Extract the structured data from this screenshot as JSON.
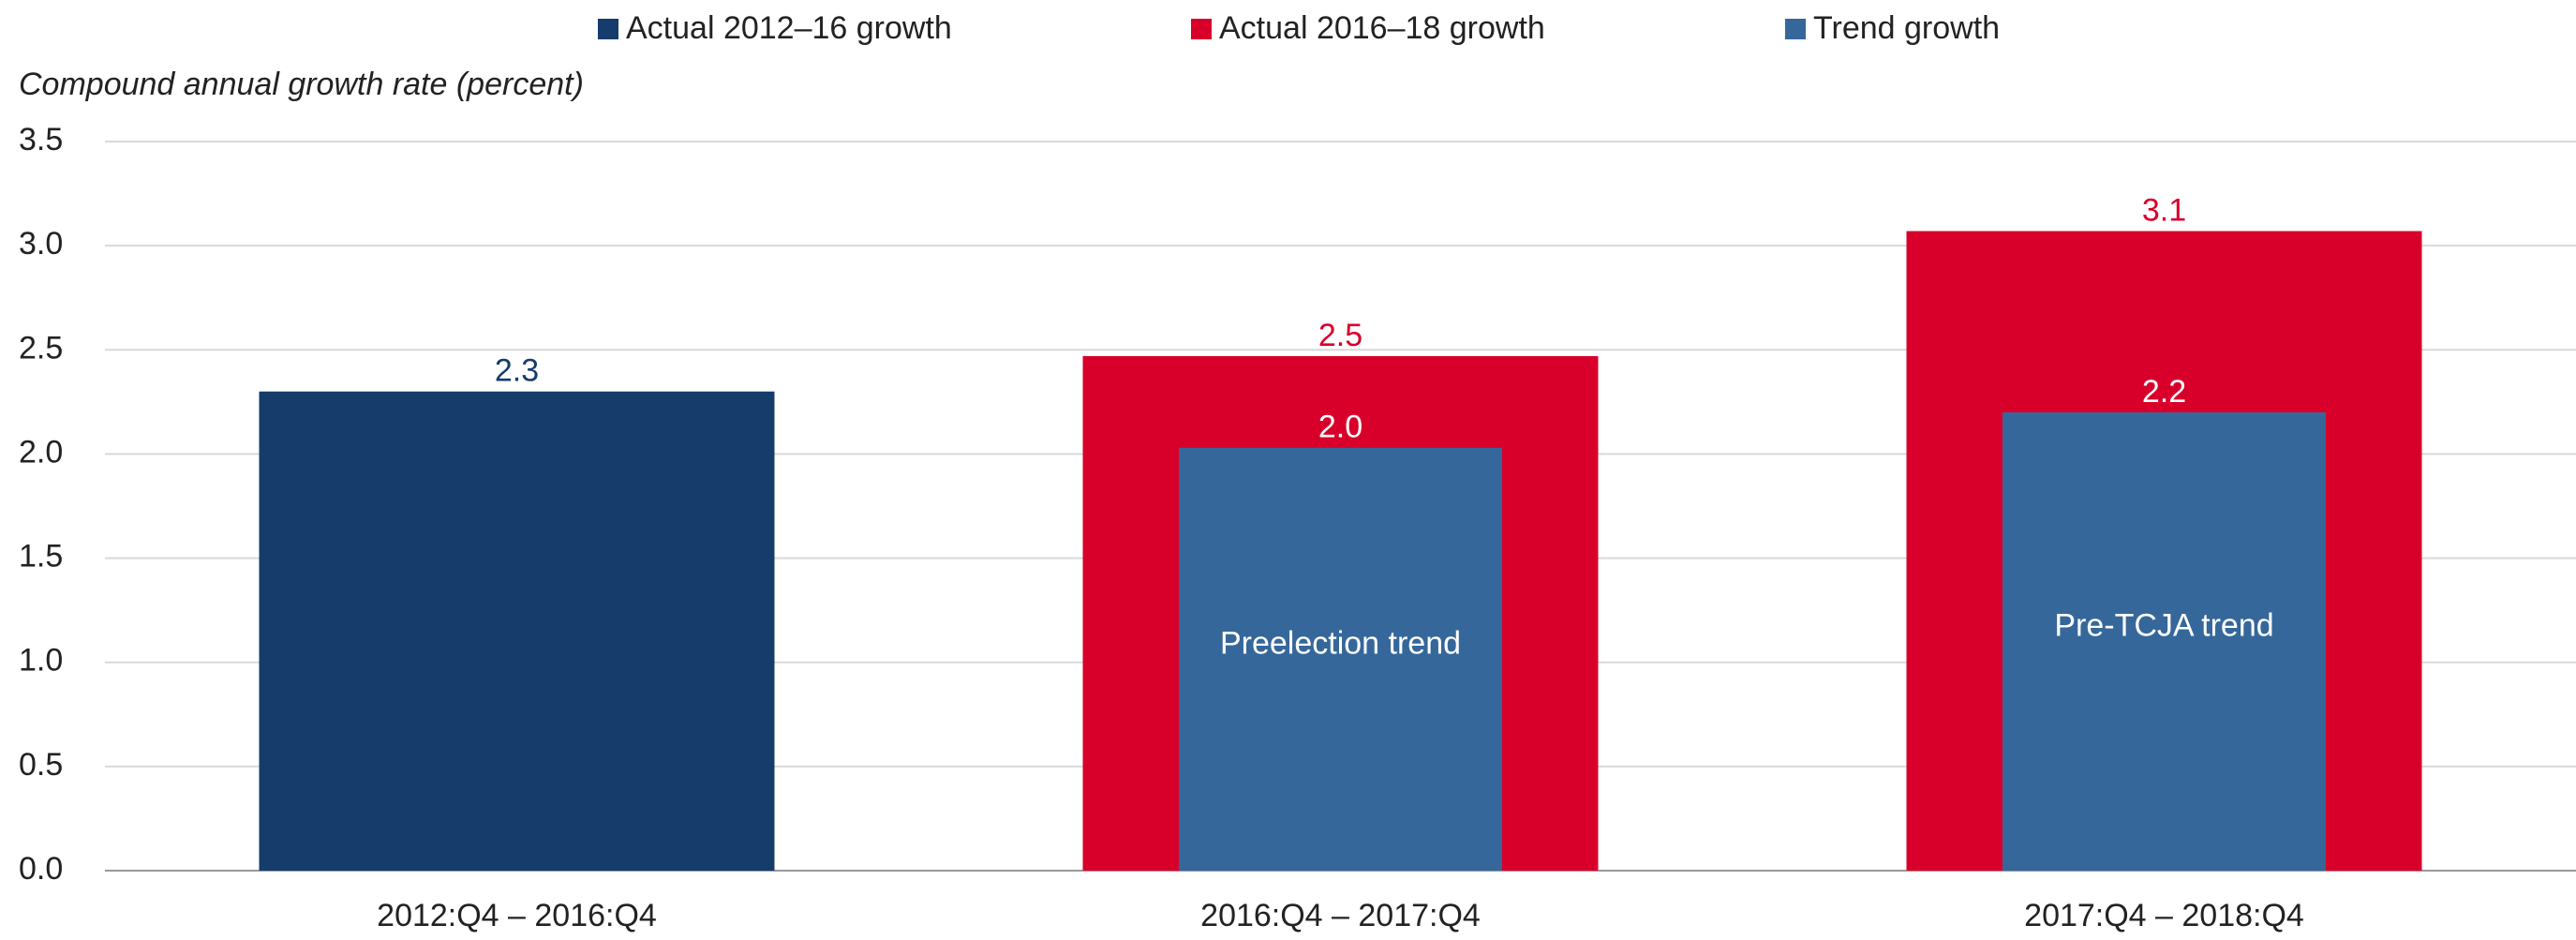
{
  "chart_data": {
    "type": "bar",
    "y_label": "Compound annual growth rate (percent)",
    "categories": [
      "2012:Q4 – 2016:Q4",
      "2016:Q4 – 2017:Q4",
      "2017:Q4 – 2018:Q4"
    ],
    "series": [
      {
        "name": "Actual 2012–16 growth",
        "color": "#153c6b",
        "label_color": "#153c6b",
        "values": [
          2.3,
          null,
          null
        ]
      },
      {
        "name": "Actual 2016–18 growth",
        "color": "#d8002b",
        "label_color": "#d8002b",
        "values": [
          null,
          2.47,
          3.07
        ],
        "value_labels": [
          null,
          "2.5",
          "3.1"
        ]
      },
      {
        "name": "Trend growth",
        "color": "#35679a",
        "label_color": "#ffffff",
        "values": [
          null,
          2.03,
          2.2
        ],
        "value_labels": [
          null,
          "2.0",
          "2.2"
        ]
      }
    ],
    "annotations": [
      "Preelection trend",
      "Pre-TCJA trend"
    ],
    "ylim": [
      0,
      3.5
    ],
    "yticks": [
      {
        "value": 0,
        "label": "0.0"
      },
      0.5,
      {
        "value": 1,
        "label": "1.0"
      },
      1.5,
      {
        "value": 2,
        "label": "2.0"
      },
      2.5,
      {
        "value": 3,
        "label": "3.0"
      },
      3.5
    ],
    "grid": true
  }
}
